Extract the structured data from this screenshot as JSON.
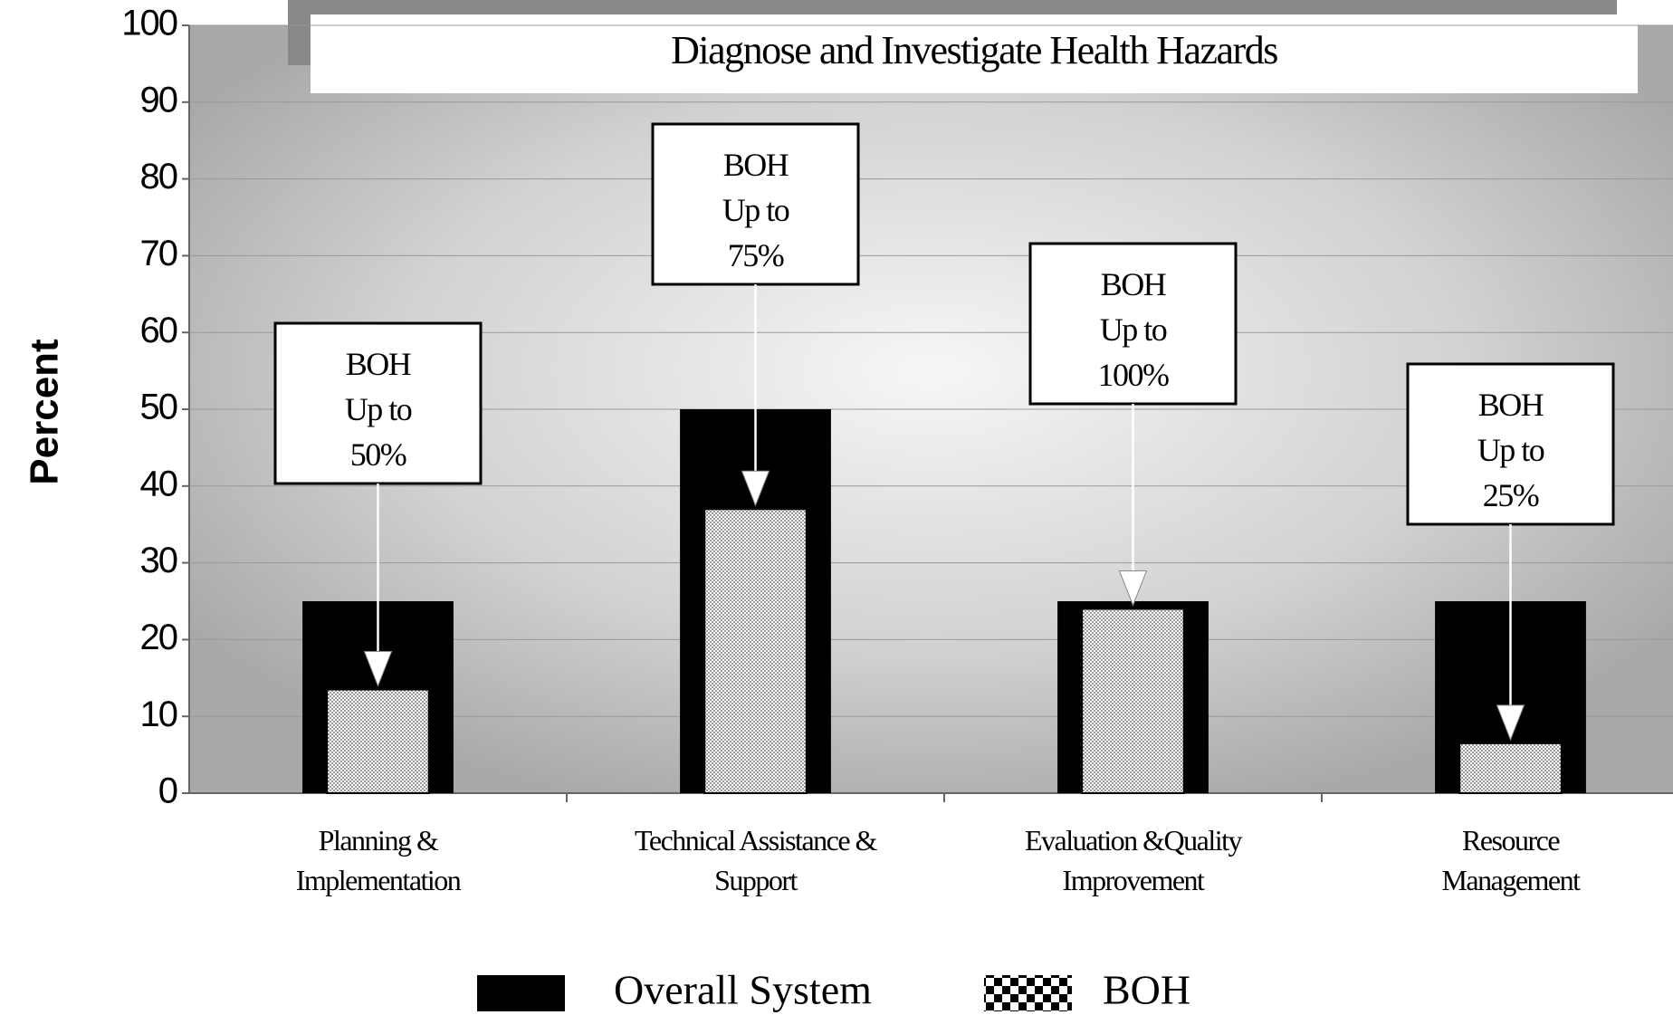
{
  "chart_data": {
    "type": "bar",
    "title": "Diagnose and Investigate Health Hazards",
    "ylabel": "Percent",
    "categories": [
      "Planning &\nImplementation",
      "Technical Assistance &\nSupport",
      "Evaluation &Quality\nImprovement",
      "Resource\nManagement"
    ],
    "series": [
      {
        "name": "Overall System",
        "color": "#000000",
        "values": [
          25,
          50,
          25,
          25
        ]
      },
      {
        "name": "BOH",
        "color": "#9a9a9a",
        "values": [
          13.5,
          37,
          24,
          6.5
        ]
      }
    ],
    "annotations": [
      "BOH\nUp to\n50%",
      "BOH\nUp to\n75%",
      "BOH\nUp to\n100%",
      "BOH\nUp to\n25%"
    ],
    "ylim": [
      0,
      100
    ],
    "yticks": [
      0,
      10,
      20,
      30,
      40,
      50,
      60,
      70,
      80,
      90,
      100
    ],
    "grid": true,
    "legend": "bottom"
  }
}
